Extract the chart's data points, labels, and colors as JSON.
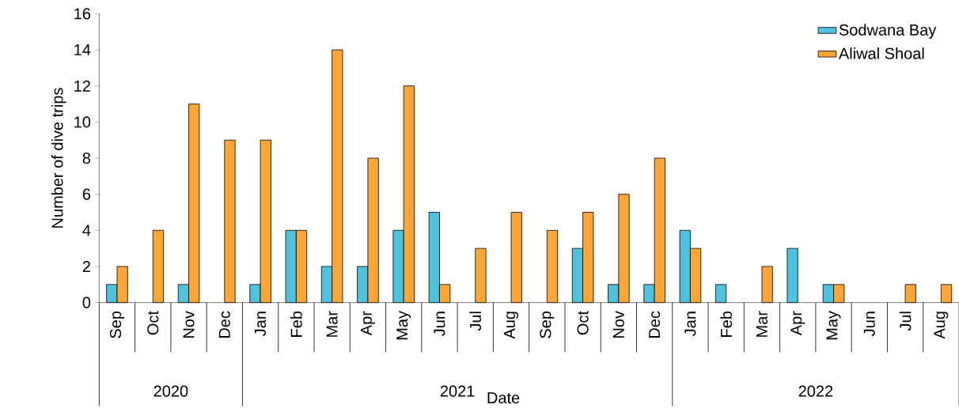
{
  "chart_data": {
    "type": "bar",
    "xlabel": "Date",
    "ylabel": "Number of dive trips",
    "categories": [
      "Sep",
      "Oct",
      "Nov",
      "Dec",
      "Jan",
      "Feb",
      "Mar",
      "Apr",
      "May",
      "Jun",
      "Jul",
      "Aug",
      "Sep",
      "Oct",
      "Nov",
      "Dec",
      "Jan",
      "Feb",
      "Mar",
      "Apr",
      "May",
      "Jun",
      "Jul",
      "Aug"
    ],
    "series": [
      {
        "name": "Sodwana Bay",
        "color": "#4ec3dd",
        "values": [
          1,
          0,
          1,
          0,
          1,
          4,
          2,
          2,
          4,
          5,
          0,
          0,
          0,
          3,
          1,
          1,
          4,
          1,
          0,
          3,
          1,
          0,
          0,
          0
        ]
      },
      {
        "name": "Aliwal Shoal",
        "color": "#ffa536",
        "values": [
          2,
          4,
          11,
          9,
          9,
          4,
          14,
          8,
          12,
          1,
          3,
          5,
          4,
          5,
          6,
          8,
          3,
          0,
          2,
          0,
          1,
          0,
          1,
          1
        ]
      }
    ],
    "annotations": [
      "2020",
      "2021",
      "2022"
    ],
    "ylim": [
      0,
      16
    ],
    "yticks": [
      0,
      2,
      4,
      6,
      8,
      10,
      12,
      14,
      16
    ],
    "grid": false,
    "legend": "top right"
  }
}
